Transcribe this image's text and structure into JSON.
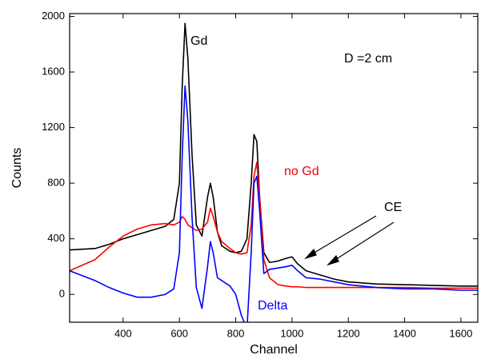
{
  "chart_data": {
    "type": "line",
    "x_label": "Channel",
    "y_label": "Counts",
    "xlim": [
      210,
      1660
    ],
    "ylim": [
      -200,
      2020
    ],
    "xticks": [
      400,
      600,
      800,
      1000,
      1200,
      1400,
      1600
    ],
    "yticks": [
      0,
      400,
      800,
      1200,
      1600,
      2000
    ],
    "x": [
      210,
      300,
      350,
      400,
      450,
      500,
      550,
      580,
      600,
      610,
      620,
      630,
      645,
      660,
      680,
      700,
      710,
      720,
      735,
      750,
      780,
      800,
      820,
      840,
      855,
      865,
      875,
      885,
      900,
      920,
      950,
      980,
      1000,
      1020,
      1050,
      1100,
      1150,
      1200,
      1300,
      1400,
      1500,
      1600,
      1660
    ],
    "series": [
      {
        "name": "Gd",
        "color": "#000000",
        "values": [
          320,
          330,
          360,
          400,
          430,
          460,
          490,
          540,
          800,
          1500,
          1950,
          1700,
          1000,
          500,
          420,
          700,
          800,
          700,
          450,
          350,
          310,
          300,
          310,
          400,
          800,
          1150,
          1100,
          700,
          300,
          230,
          240,
          260,
          270,
          220,
          170,
          140,
          110,
          90,
          75,
          70,
          65,
          60,
          60
        ]
      },
      {
        "name": "no Gd",
        "color": "#ff0000",
        "values": [
          170,
          250,
          340,
          420,
          470,
          500,
          510,
          500,
          520,
          560,
          540,
          500,
          480,
          460,
          470,
          520,
          620,
          560,
          450,
          380,
          330,
          300,
          290,
          300,
          500,
          850,
          950,
          700,
          250,
          120,
          70,
          60,
          55,
          55,
          50,
          50,
          50,
          50,
          50,
          50,
          45,
          45,
          45
        ]
      },
      {
        "name": "Delta",
        "color": "#0000ff",
        "values": [
          170,
          100,
          50,
          10,
          -20,
          -20,
          0,
          40,
          300,
          1000,
          1500,
          1250,
          550,
          50,
          -100,
          200,
          380,
          300,
          120,
          100,
          60,
          0,
          -150,
          -250,
          300,
          800,
          850,
          600,
          150,
          180,
          190,
          200,
          210,
          170,
          120,
          110,
          90,
          70,
          50,
          40,
          40,
          30,
          30
        ]
      }
    ],
    "annotations": [
      {
        "text": "Gd",
        "color": "#000000"
      },
      {
        "text": "D =2 cm",
        "color": "#000000"
      },
      {
        "text": "no Gd",
        "color": "#ff0000"
      },
      {
        "text": "CE",
        "color": "#000000"
      },
      {
        "text": "Delta",
        "color": "#0000ff"
      }
    ]
  }
}
